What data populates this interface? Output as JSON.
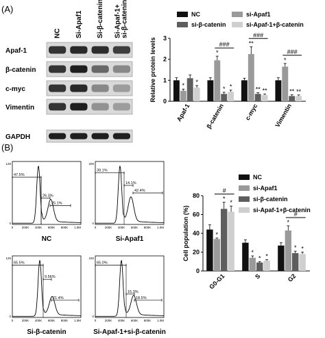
{
  "panel_labels": {
    "a": "(A)",
    "b": "(B)"
  },
  "western_blot": {
    "lanes": [
      "NC",
      "Si-Apaf1",
      "Si-β-catenin",
      "Si-Apaf-1+ si-β-catenin"
    ],
    "proteins": [
      {
        "name": "Apaf-1",
        "intensity": [
          0.85,
          0.9,
          0.88,
          0.8
        ]
      },
      {
        "name": "β-catenin",
        "intensity": [
          0.85,
          0.95,
          0.6,
          0.45
        ]
      },
      {
        "name": "c-myc",
        "intensity": [
          0.85,
          0.9,
          0.45,
          0.35
        ]
      },
      {
        "name": "Vimentin",
        "intensity": [
          0.85,
          0.95,
          0.4,
          0.35
        ]
      },
      {
        "name": "GAPDH",
        "intensity": [
          0.95,
          0.95,
          0.95,
          0.95
        ]
      }
    ]
  },
  "flow_histograms": [
    {
      "label": "NC",
      "ymax_label": "128",
      "peaks": [
        {
          "x": 0.38,
          "h": 0.95
        },
        {
          "x": 0.56,
          "h": 0.36
        }
      ],
      "gate_labels": [
        "47.5%",
        "26.3%",
        "25.1%"
      ]
    },
    {
      "label": "Si-Apaf1",
      "ymax_label": "200",
      "peaks": [
        {
          "x": 0.36,
          "h": 0.95
        },
        {
          "x": 0.52,
          "h": 0.4
        }
      ],
      "gate_labels": [
        "39.1%",
        "14.1%",
        "42.4%"
      ]
    },
    {
      "label": "Si-β-catenin",
      "ymax_label": "125",
      "peaks": [
        {
          "x": 0.4,
          "h": 0.95
        },
        {
          "x": 0.58,
          "h": 0.3
        }
      ],
      "gate_labels": [
        "65.5%",
        "9.56%",
        "21.4%"
      ]
    },
    {
      "label": "Si-Apaf-1+si-β-catenin",
      "ymax_label": "150",
      "peaks": [
        {
          "x": 0.38,
          "h": 0.95
        },
        {
          "x": 0.56,
          "h": 0.32
        }
      ],
      "gate_labels": [
        "65.0%",
        "15.3%",
        "18.5%"
      ]
    }
  ],
  "flow_x_ticks": [
    "0",
    "200K",
    "400K",
    "600K",
    "800K",
    "1.0M"
  ],
  "chart_data": [
    {
      "type": "bar",
      "categories": [
        "Apaf-1",
        "β-catenin",
        "c-myc",
        "Vimentin"
      ],
      "ylabel": "Relative protein levels",
      "ylim": [
        0,
        3
      ],
      "yticks": [
        0,
        1,
        2,
        3
      ],
      "legend": "top",
      "series": [
        {
          "name": "NC",
          "color": "#111111",
          "values": [
            1.0,
            1.0,
            1.0,
            1.0
          ],
          "errors": [
            0.12,
            0.12,
            0.1,
            0.12
          ],
          "marks": [
            "",
            "",
            "",
            ""
          ]
        },
        {
          "name": "si-Apaf1",
          "color": "#9a9a9a",
          "values": [
            0.5,
            1.95,
            2.25,
            1.65
          ],
          "errors": [
            0.08,
            0.2,
            0.35,
            0.15
          ],
          "marks": [
            "*",
            "*",
            "**",
            "*"
          ]
        },
        {
          "name": "si-β-catenin",
          "color": "#5e5e5e",
          "values": [
            1.1,
            0.35,
            0.35,
            0.25
          ],
          "errors": [
            0.15,
            0.08,
            0.06,
            0.06
          ],
          "marks": [
            "",
            "*",
            "**",
            "**"
          ]
        },
        {
          "name": "si-Apaf-1+β-catenin",
          "color": "#cfcfcf",
          "values": [
            0.65,
            0.45,
            0.3,
            0.25
          ],
          "errors": [
            0.1,
            0.08,
            0.05,
            0.05
          ],
          "marks": [
            "*",
            "*",
            "**",
            "**"
          ]
        }
      ],
      "brackets": [
        {
          "category": 1,
          "label": "###"
        },
        {
          "category": 2,
          "label": "###"
        },
        {
          "category": 3,
          "label": "###"
        }
      ]
    },
    {
      "type": "bar",
      "categories": [
        "G0-G1",
        "S",
        "G2"
      ],
      "ylabel": "Cell population (%)",
      "ylim": [
        0,
        80
      ],
      "yticks": [
        0,
        20,
        40,
        60,
        80
      ],
      "legend": "top-right",
      "series": [
        {
          "name": "NC",
          "color": "#111111",
          "values": [
            44,
            30,
            27
          ],
          "errors": [
            5,
            3,
            3
          ],
          "marks": [
            "",
            "",
            ""
          ]
        },
        {
          "name": "si-Apaf1",
          "color": "#9a9a9a",
          "values": [
            34,
            14,
            43
          ],
          "errors": [
            1,
            2,
            5
          ],
          "marks": [
            "*",
            "*",
            "*"
          ]
        },
        {
          "name": "si-β-catenin",
          "color": "#5e5e5e",
          "values": [
            66,
            9,
            19
          ],
          "errors": [
            7,
            1,
            2
          ],
          "marks": [
            "*",
            "*",
            "*"
          ]
        },
        {
          "name": "si-Apaf-1+β-catenin",
          "color": "#cfcfcf",
          "values": [
            63,
            11,
            18
          ],
          "errors": [
            6,
            1,
            2
          ],
          "marks": [
            "*",
            "*",
            "*"
          ]
        }
      ],
      "brackets": [
        {
          "category": 0,
          "label": "#"
        },
        {
          "category": 2,
          "label": "#"
        }
      ]
    }
  ]
}
